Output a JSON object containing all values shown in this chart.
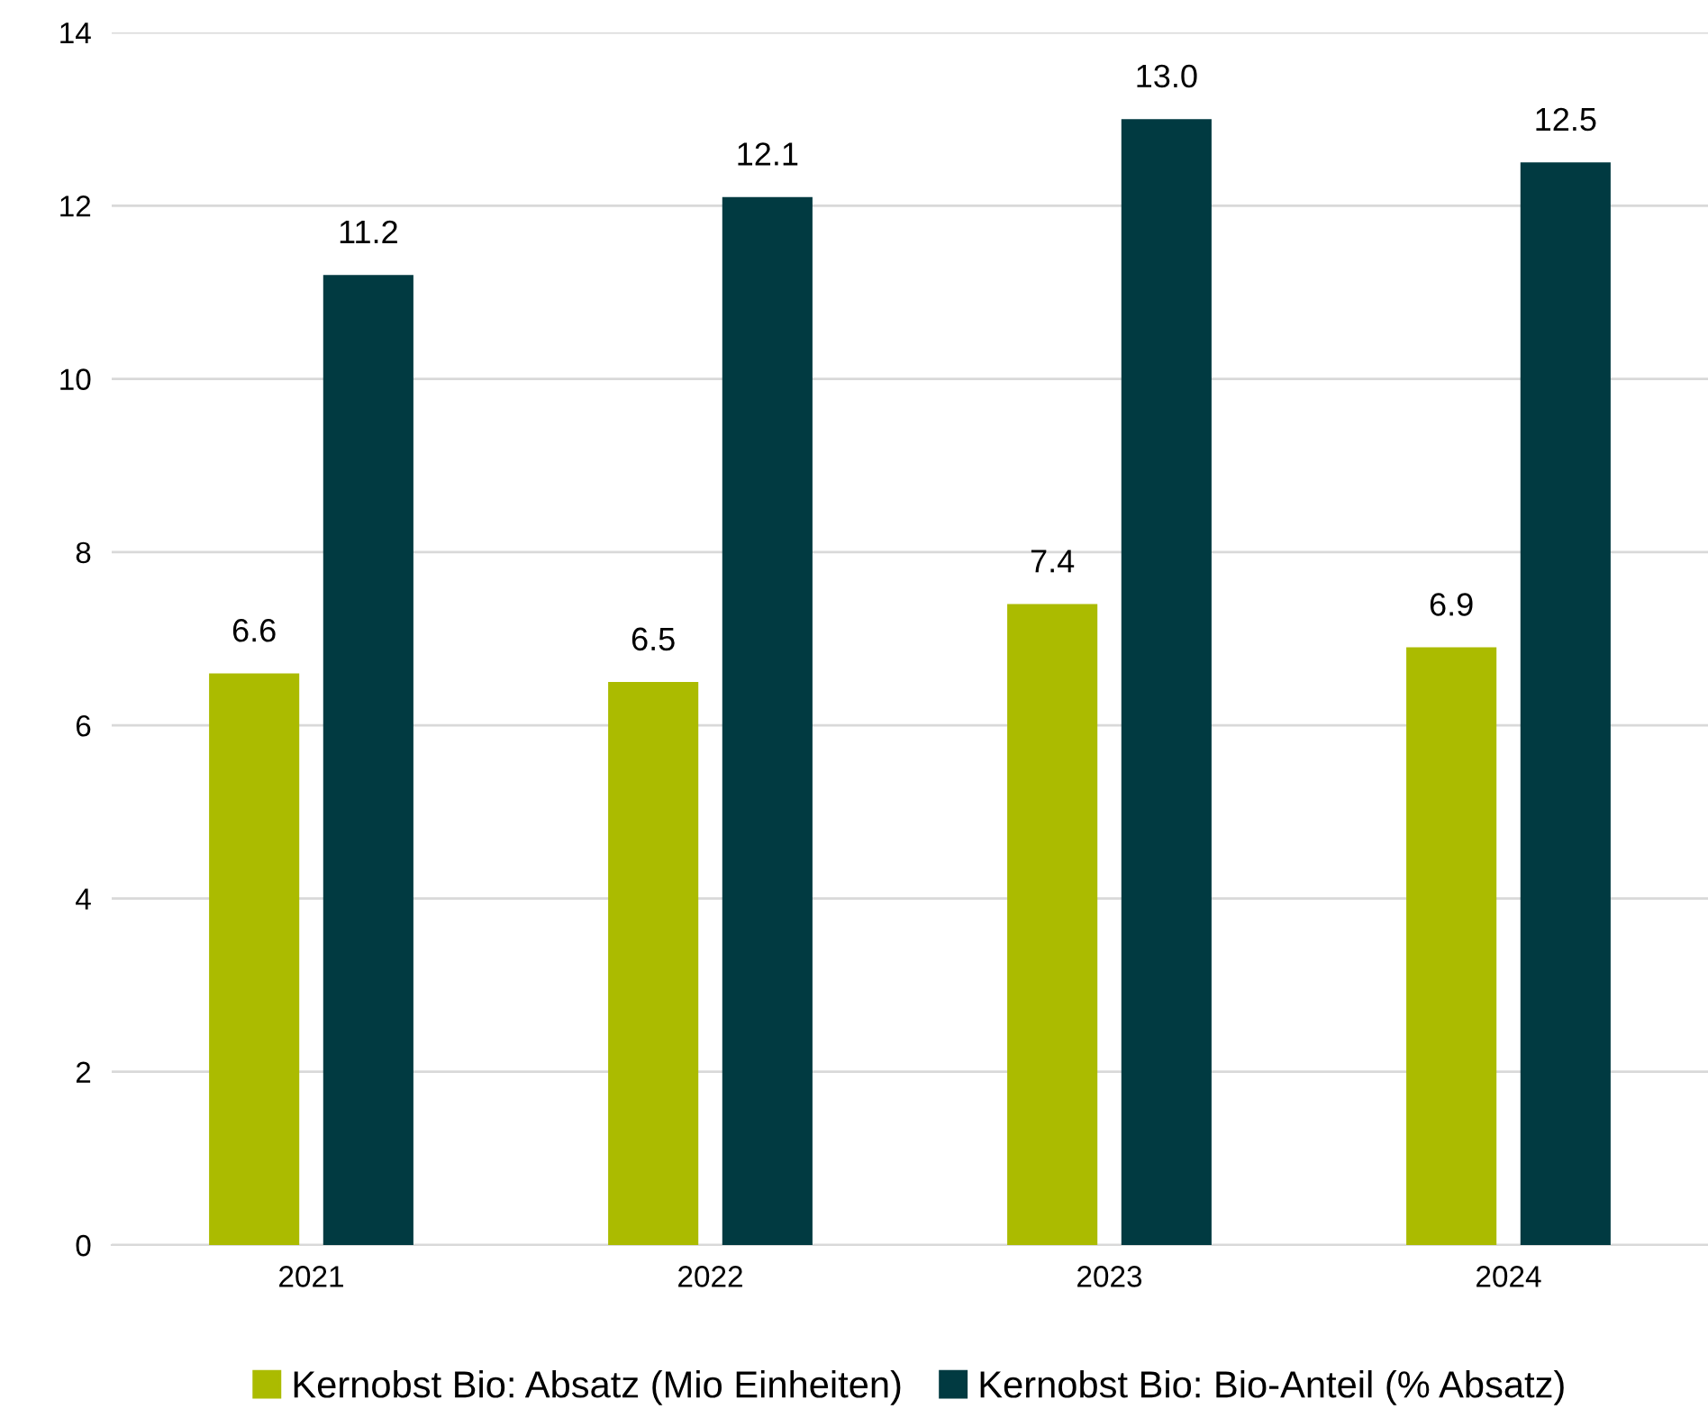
{
  "chart_data": {
    "type": "bar",
    "categories": [
      "2021",
      "2022",
      "2023",
      "2024"
    ],
    "series": [
      {
        "name": "Kernobst Bio: Absatz (Mio Einheiten)",
        "color": "#abbb00",
        "values": [
          6.6,
          6.5,
          7.4,
          6.9
        ]
      },
      {
        "name": "Kernobst Bio: Bio-Anteil (% Absatz)",
        "color": "#013a41",
        "values": [
          11.2,
          12.1,
          13.0,
          12.5
        ],
        "value_labels": [
          "11.2",
          "12.1",
          "13.0",
          "12.5"
        ]
      }
    ],
    "ylim": [
      0,
      14
    ],
    "yticks": [
      0,
      2,
      4,
      6,
      8,
      10,
      12,
      14
    ],
    "grid": "y",
    "legend": "bottom",
    "data_labels": true
  }
}
